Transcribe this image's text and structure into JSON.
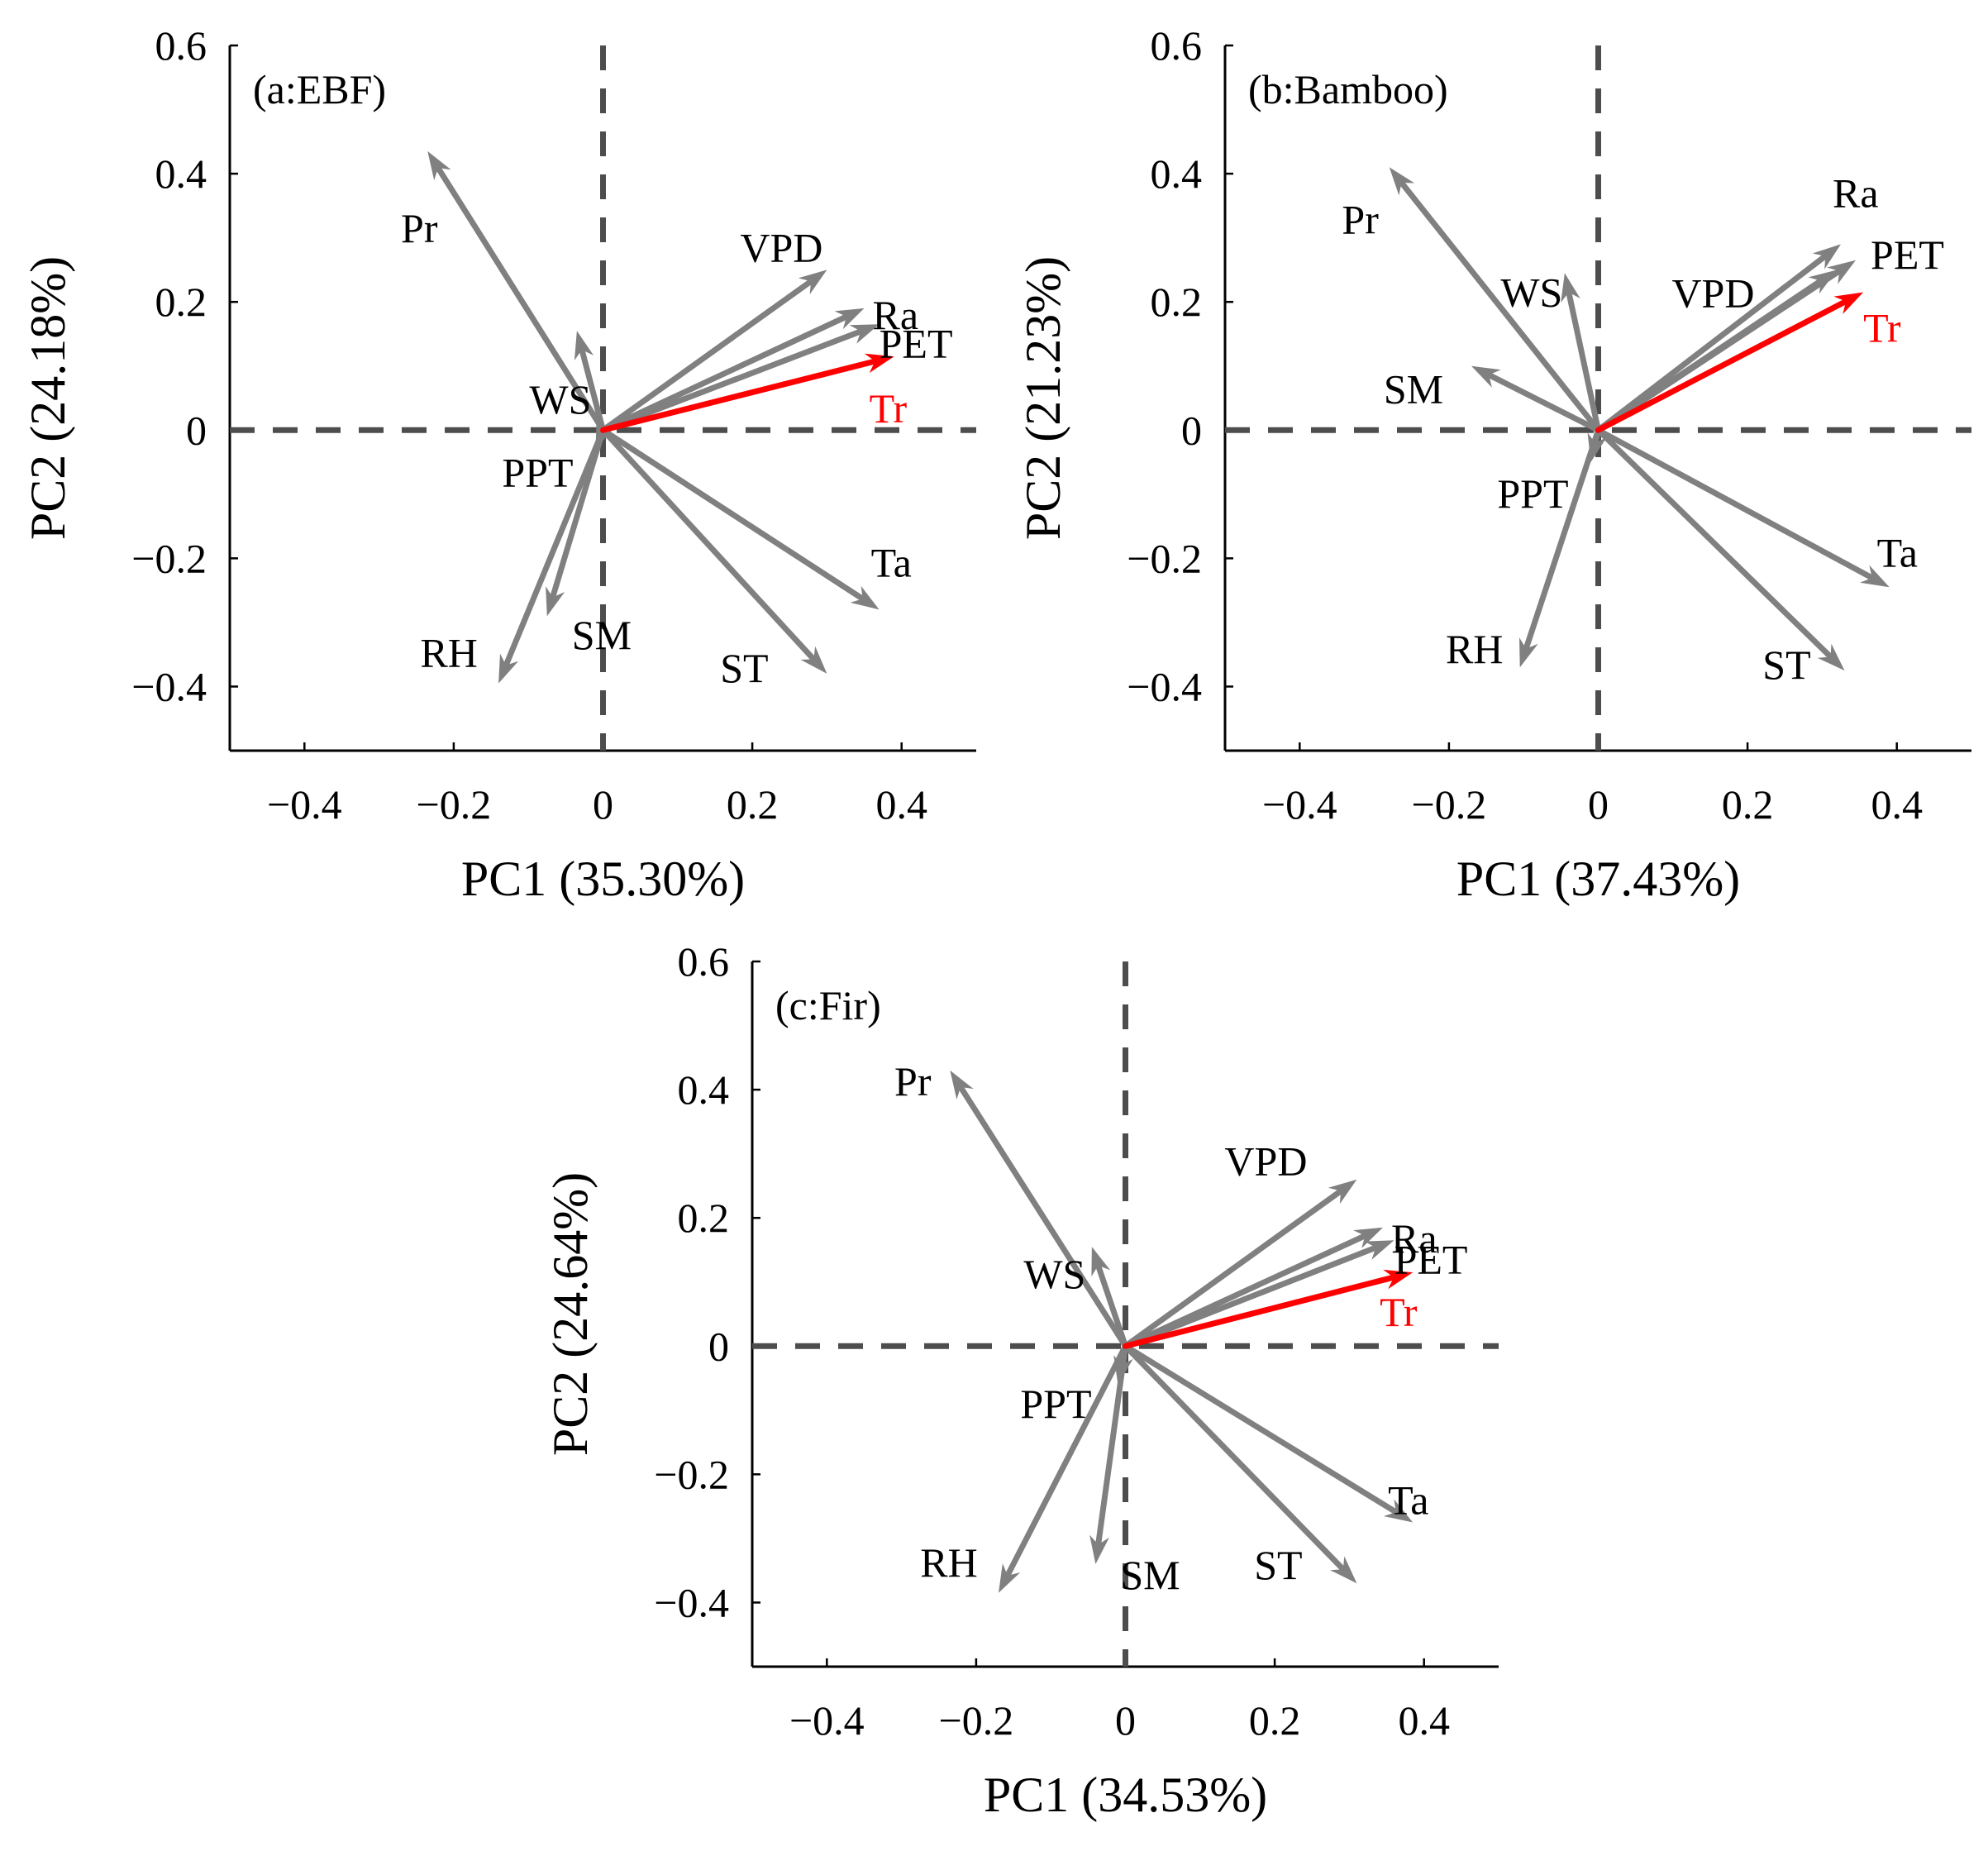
{
  "figure": {
    "panel_count": 3
  },
  "colors": {
    "vector": "#808080",
    "highlight": "#ff0000",
    "refline": "#4d4d4d",
    "axis": "#000000",
    "text": "#000000"
  },
  "chart_data": [
    {
      "type": "biplot",
      "title": "(a:EBF)",
      "xlabel": "PC1 (35.30%)",
      "ylabel": "PC2 (24.18%)",
      "xlim": [
        -0.5,
        0.5
      ],
      "ylim": [
        -0.5,
        0.6
      ],
      "xticks": [
        -0.4,
        -0.2,
        0,
        0.2,
        0.4
      ],
      "xtick_labels": [
        "−0.4",
        "−0.2",
        "0",
        "0.2",
        "0.4"
      ],
      "yticks": [
        -0.4,
        -0.2,
        0,
        0.2,
        0.4,
        0.6
      ],
      "ytick_labels": [
        "−0.4",
        "−0.2",
        "0",
        "0.2",
        "0.4",
        "0.6"
      ],
      "vectors": [
        {
          "name": "Pr",
          "x": -0.235,
          "y": 0.435,
          "color": "#808080"
        },
        {
          "name": "WS",
          "x": -0.035,
          "y": 0.155,
          "color": "#808080"
        },
        {
          "name": "VPD",
          "x": 0.3,
          "y": 0.25,
          "color": "#808080"
        },
        {
          "name": "Ra",
          "x": 0.35,
          "y": 0.19,
          "color": "#808080"
        },
        {
          "name": "PET",
          "x": 0.37,
          "y": 0.165,
          "color": "#808080"
        },
        {
          "name": "Tr",
          "x": 0.39,
          "y": 0.115,
          "color": "#ff0000"
        },
        {
          "name": "PPT",
          "x": -0.01,
          "y": -0.03,
          "color": "#808080"
        },
        {
          "name": "SM",
          "x": -0.075,
          "y": -0.29,
          "color": "#808080"
        },
        {
          "name": "RH",
          "x": -0.14,
          "y": -0.395,
          "color": "#808080"
        },
        {
          "name": "Ta",
          "x": 0.37,
          "y": -0.28,
          "color": "#808080"
        },
        {
          "name": "ST",
          "x": 0.3,
          "y": -0.38,
          "color": "#808080"
        }
      ]
    },
    {
      "type": "biplot",
      "title": "(b:Bamboo)",
      "xlabel": "PC1 (37.43%)",
      "ylabel": "PC2 (21.23%)",
      "xlim": [
        -0.5,
        0.5
      ],
      "ylim": [
        -0.5,
        0.6
      ],
      "xticks": [
        -0.4,
        -0.2,
        0,
        0.2,
        0.4
      ],
      "xtick_labels": [
        "−0.4",
        "−0.2",
        "0",
        "0.2",
        "0.4"
      ],
      "yticks": [
        -0.4,
        -0.2,
        0,
        0.2,
        0.4,
        0.6
      ],
      "ytick_labels": [
        "−0.4",
        "−0.2",
        "0",
        "0.2",
        "0.4",
        "0.6"
      ],
      "vectors": [
        {
          "name": "Pr",
          "x": -0.28,
          "y": 0.41,
          "color": "#808080"
        },
        {
          "name": "WS",
          "x": -0.045,
          "y": 0.245,
          "color": "#808080"
        },
        {
          "name": "SM",
          "x": -0.17,
          "y": 0.1,
          "color": "#808080"
        },
        {
          "name": "Ra",
          "x": 0.325,
          "y": 0.29,
          "color": "#808080"
        },
        {
          "name": "VPD",
          "x": 0.32,
          "y": 0.25,
          "color": "#808080"
        },
        {
          "name": "PET",
          "x": 0.345,
          "y": 0.265,
          "color": "#808080"
        },
        {
          "name": "Tr",
          "x": 0.355,
          "y": 0.215,
          "color": "#ff0000"
        },
        {
          "name": "PPT",
          "x": -0.01,
          "y": -0.05,
          "color": "#808080"
        },
        {
          "name": "RH",
          "x": -0.105,
          "y": -0.37,
          "color": "#808080"
        },
        {
          "name": "Ta",
          "x": 0.39,
          "y": -0.245,
          "color": "#808080"
        },
        {
          "name": "ST",
          "x": 0.33,
          "y": -0.375,
          "color": "#808080"
        }
      ]
    },
    {
      "type": "biplot",
      "title": "(c:Fir)",
      "xlabel": "PC1 (34.53%)",
      "ylabel": "PC2 (24.64%)",
      "xlim": [
        -0.5,
        0.5
      ],
      "ylim": [
        -0.5,
        0.6
      ],
      "xticks": [
        -0.4,
        -0.2,
        0,
        0.2,
        0.4
      ],
      "xtick_labels": [
        "−0.4",
        "−0.2",
        "0",
        "0.2",
        "0.4"
      ],
      "yticks": [
        -0.4,
        -0.2,
        0,
        0.2,
        0.4,
        0.6
      ],
      "ytick_labels": [
        "−0.4",
        "−0.2",
        "0",
        "0.2",
        "0.4",
        "0.6"
      ],
      "vectors": [
        {
          "name": "Pr",
          "x": -0.235,
          "y": 0.43,
          "color": "#808080"
        },
        {
          "name": "WS",
          "x": -0.045,
          "y": 0.155,
          "color": "#808080"
        },
        {
          "name": "VPD",
          "x": 0.31,
          "y": 0.26,
          "color": "#808080"
        },
        {
          "name": "Ra",
          "x": 0.345,
          "y": 0.185,
          "color": "#808080"
        },
        {
          "name": "PET",
          "x": 0.36,
          "y": 0.165,
          "color": "#808080"
        },
        {
          "name": "Tr",
          "x": 0.385,
          "y": 0.115,
          "color": "#ff0000"
        },
        {
          "name": "PPT",
          "x": -0.01,
          "y": -0.06,
          "color": "#808080"
        },
        {
          "name": "SM",
          "x": -0.04,
          "y": -0.34,
          "color": "#808080"
        },
        {
          "name": "RH",
          "x": -0.17,
          "y": -0.385,
          "color": "#808080"
        },
        {
          "name": "Ta",
          "x": 0.385,
          "y": -0.275,
          "color": "#808080"
        },
        {
          "name": "ST",
          "x": 0.31,
          "y": -0.37,
          "color": "#808080"
        }
      ]
    }
  ]
}
